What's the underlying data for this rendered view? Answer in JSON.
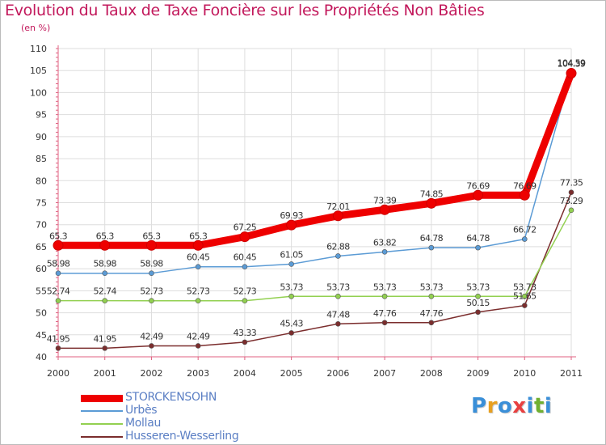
{
  "chart_data": {
    "type": "line",
    "title": "Evolution du Taux de Taxe Foncière sur les Propriétés Non Bâties",
    "subtitle": "(en %)",
    "x": [
      "2000",
      "2001",
      "2002",
      "2003",
      "2004",
      "2005",
      "2006",
      "2007",
      "2008",
      "2009",
      "2010",
      "2011"
    ],
    "ylim": [
      40,
      110
    ],
    "yticks": [
      40,
      45,
      50,
      55,
      60,
      65,
      70,
      75,
      80,
      85,
      90,
      95,
      100,
      105,
      110
    ],
    "grid": true,
    "legend_position": "bottom-left",
    "series": [
      {
        "name": "STORCKENSOHN",
        "color": "#ee0000",
        "width": 9,
        "values": [
          65.3,
          65.3,
          65.3,
          65.3,
          67.25,
          69.93,
          72.01,
          73.39,
          74.85,
          76.69,
          76.69,
          104.39
        ],
        "labels": [
          "65.3",
          "65.3",
          "65.3",
          "65.3",
          "67.25",
          "69.93",
          "72.01",
          "73.39",
          "74.85",
          "76.69",
          "76.69",
          "104.39"
        ]
      },
      {
        "name": "Urbès",
        "color": "#5b9bd5",
        "width": 1.5,
        "values": [
          58.98,
          58.98,
          58.98,
          60.45,
          60.45,
          61.05,
          62.88,
          63.82,
          64.78,
          64.78,
          66.72,
          104.59
        ],
        "labels": [
          "58.98",
          "58.98",
          "58.98",
          "60.45",
          "60.45",
          "61.05",
          "62.88",
          "63.82",
          "64.78",
          "64.78",
          "66.72",
          "104.59"
        ]
      },
      {
        "name": "Mollau",
        "color": "#92d050",
        "width": 1.5,
        "values": [
          52.74,
          52.74,
          52.73,
          52.73,
          52.73,
          53.73,
          53.73,
          53.73,
          53.73,
          53.73,
          53.73,
          73.29
        ],
        "labels": [
          "52.74",
          "52.74",
          "52.73",
          "52.73",
          "52.73",
          "53.73",
          "53.73",
          "53.73",
          "53.73",
          "53.73",
          "53.73",
          "73.29"
        ]
      },
      {
        "name": "Husseren-Wesserling",
        "color": "#7b2d2d",
        "width": 1.5,
        "values": [
          41.95,
          41.95,
          42.49,
          42.49,
          43.33,
          45.43,
          47.48,
          47.76,
          47.76,
          50.15,
          51.65,
          77.35
        ],
        "labels": [
          "41.95",
          "41.95",
          "42.49",
          "42.49",
          "43.33",
          "45.43",
          "47.48",
          "47.76",
          "47.76",
          "50.15",
          "51.65",
          "77.35"
        ]
      }
    ]
  },
  "logo": {
    "text": "Proxiti"
  }
}
